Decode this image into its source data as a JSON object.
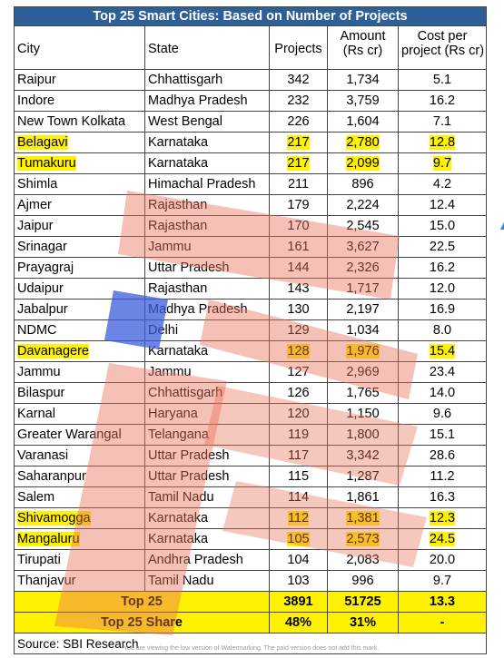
{
  "title": "Top 25 Smart Cities: Based on Number of Projects",
  "columns": {
    "city": "City",
    "state": "State",
    "projects": "Projects",
    "amount_l1": "Amount",
    "amount_l2": "(Rs cr)",
    "cost_l1": "Cost per",
    "cost_l2": "project (Rs cr)"
  },
  "rows": [
    {
      "city": "Raipur",
      "state": "Chhattisgarh",
      "projects": "342",
      "amount": "1,734",
      "cost": "5.1",
      "highlight": false
    },
    {
      "city": "Indore",
      "state": "Madhya Pradesh",
      "projects": "232",
      "amount": "3,759",
      "cost": "16.2",
      "highlight": false
    },
    {
      "city": "New Town Kolkata",
      "state": "West Bengal",
      "projects": "226",
      "amount": "1,604",
      "cost": "7.1",
      "highlight": false
    },
    {
      "city": "Belagavi",
      "state": "Karnataka",
      "projects": "217",
      "amount": "2,780",
      "cost": "12.8",
      "highlight": true
    },
    {
      "city": "Tumakuru",
      "state": "Karnataka",
      "projects": "217",
      "amount": "2,099",
      "cost": "9.7",
      "highlight": true
    },
    {
      "city": "Shimla",
      "state": "Himachal Pradesh",
      "projects": "211",
      "amount": "896",
      "cost": "4.2",
      "highlight": false
    },
    {
      "city": "Ajmer",
      "state": "Rajasthan",
      "projects": "179",
      "amount": "2,224",
      "cost": "12.4",
      "highlight": false
    },
    {
      "city": "Jaipur",
      "state": "Rajasthan",
      "projects": "170",
      "amount": "2,545",
      "cost": "15.0",
      "highlight": false
    },
    {
      "city": "Srinagar",
      "state": "Jammu",
      "projects": "161",
      "amount": "3,627",
      "cost": "22.5",
      "highlight": false
    },
    {
      "city": "Prayagraj",
      "state": "Uttar Pradesh",
      "projects": "144",
      "amount": "2,326",
      "cost": "16.2",
      "highlight": false
    },
    {
      "city": "Udaipur",
      "state": "Rajasthan",
      "projects": "143",
      "amount": "1,717",
      "cost": "12.0",
      "highlight": false
    },
    {
      "city": "Jabalpur",
      "state": "Madhya Pradesh",
      "projects": "130",
      "amount": "2,197",
      "cost": "16.9",
      "highlight": false
    },
    {
      "city": "NDMC",
      "state": "Delhi",
      "projects": "129",
      "amount": "1,034",
      "cost": "8.0",
      "highlight": false
    },
    {
      "city": "Davanagere",
      "state": "Karnataka",
      "projects": "128",
      "amount": "1,976",
      "cost": "15.4",
      "highlight": true
    },
    {
      "city": "Jammu",
      "state": "Jammu",
      "projects": "127",
      "amount": "2,969",
      "cost": "23.4",
      "highlight": false
    },
    {
      "city": "Bilaspur",
      "state": "Chhattisgarh",
      "projects": "126",
      "amount": "1,765",
      "cost": "14.0",
      "highlight": false
    },
    {
      "city": "Karnal",
      "state": "Haryana",
      "projects": "120",
      "amount": "1,150",
      "cost": "9.6",
      "highlight": false
    },
    {
      "city": "Greater Warangal",
      "state": "Telangana",
      "projects": "119",
      "amount": "1,800",
      "cost": "15.1",
      "highlight": false
    },
    {
      "city": "Varanasi",
      "state": "Uttar Pradesh",
      "projects": "117",
      "amount": "3,342",
      "cost": "28.6",
      "highlight": false
    },
    {
      "city": "Saharanpur",
      "state": "Uttar Pradesh",
      "projects": "115",
      "amount": "1,287",
      "cost": "11.2",
      "highlight": false
    },
    {
      "city": "Salem",
      "state": "Tamil Nadu",
      "projects": "114",
      "amount": "1,861",
      "cost": "16.3",
      "highlight": false
    },
    {
      "city": "Shivamogga",
      "state": "Karnataka",
      "projects": "112",
      "amount": "1,381",
      "cost": "12.3",
      "highlight": true
    },
    {
      "city": "Mangaluru",
      "state": "Karnataka",
      "projects": "105",
      "amount": "2,573",
      "cost": "24.5",
      "highlight": true
    },
    {
      "city": "Tirupati",
      "state": "Andhra Pradesh",
      "projects": "104",
      "amount": "2,083",
      "cost": "20.0",
      "highlight": false
    },
    {
      "city": "Thanjavur",
      "state": "Tamil Nadu",
      "projects": "103",
      "amount": "996",
      "cost": "9.7",
      "highlight": false
    }
  ],
  "summary": [
    {
      "label": "Top 25",
      "projects": "3891",
      "amount": "51725",
      "cost": "13.3"
    },
    {
      "label": "Top 25 Share",
      "projects": "48%",
      "amount": "31%",
      "cost": "-"
    }
  ],
  "source": "Source: SBI Research",
  "overlay_text": "You are viewing the low version of Watermarking. The paid version does not add this mark.",
  "colors": {
    "header_bg": "#2f5f97",
    "highlight": "#fff200",
    "overlay_red": "#e8735a",
    "overlay_blue": "#3b5bdb"
  }
}
